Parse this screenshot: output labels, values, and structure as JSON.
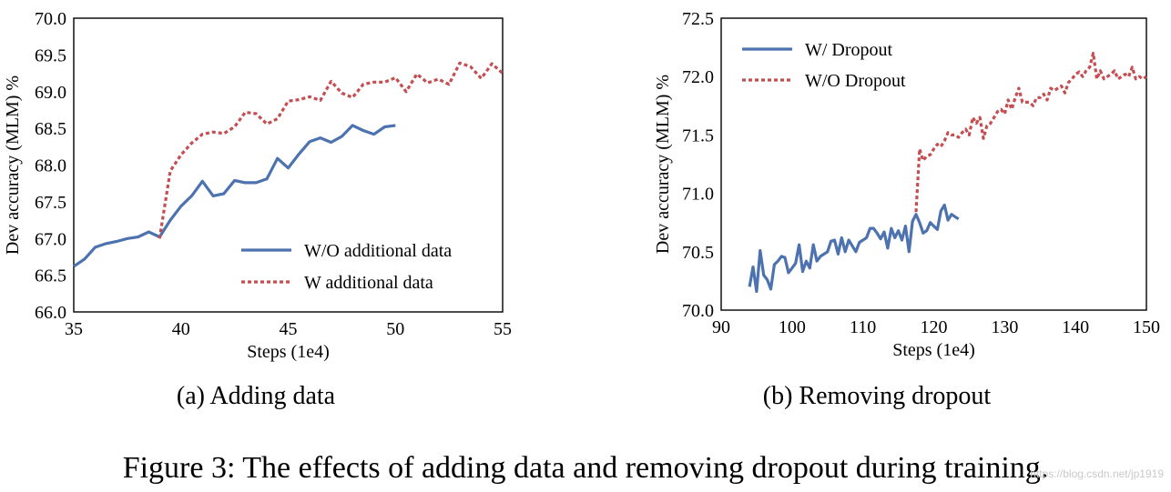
{
  "chart_data": [
    {
      "type": "line",
      "title": "",
      "xlabel": "Steps (1e4)",
      "ylabel": "Dev accuracy (MLM) %",
      "xlim": [
        35,
        55
      ],
      "ylim": [
        66.0,
        70.0
      ],
      "xticks": [
        "35",
        "40",
        "45",
        "50",
        "55"
      ],
      "yticks": [
        "66.0",
        "66.5",
        "67.0",
        "67.5",
        "68.0",
        "68.5",
        "69.0",
        "69.5",
        "70.0"
      ],
      "grid": false,
      "legend_position": "lower-right",
      "series": [
        {
          "name": "W/O additional data",
          "color": "#4c72b0",
          "style": "solid",
          "x": [
            35,
            35.5,
            36,
            36.5,
            37,
            37.5,
            38,
            38.5,
            39,
            39.5,
            40,
            40.5,
            41,
            41.5,
            42,
            42.5,
            43,
            43.5,
            44,
            44.5,
            45,
            45.5,
            46,
            46.5,
            47,
            47.5,
            48,
            48.5,
            49,
            49.5,
            50
          ],
          "y": [
            66.62,
            66.72,
            66.88,
            66.93,
            66.96,
            67.0,
            67.02,
            67.09,
            67.02,
            67.25,
            67.44,
            67.58,
            67.78,
            67.58,
            67.61,
            67.79,
            67.76,
            67.76,
            67.81,
            68.09,
            67.96,
            68.15,
            68.32,
            68.37,
            68.31,
            68.39,
            68.54,
            68.47,
            68.42,
            68.52,
            68.54
          ]
        },
        {
          "name": "W additional data",
          "color": "#c44e52",
          "style": "dotted",
          "x": [
            39,
            39.5,
            40,
            40.5,
            41,
            41.5,
            42,
            42.5,
            43,
            43.5,
            44,
            44.5,
            45,
            45.5,
            46,
            46.5,
            47,
            47.5,
            48,
            48.5,
            49,
            49.5,
            50,
            50.5,
            51,
            51.5,
            52,
            52.5,
            53,
            53.5,
            54,
            54.5,
            55
          ],
          "y": [
            67.0,
            67.92,
            68.14,
            68.3,
            68.42,
            68.45,
            68.43,
            68.52,
            68.72,
            68.7,
            68.56,
            68.63,
            68.87,
            68.89,
            68.93,
            68.88,
            69.14,
            68.98,
            68.92,
            69.1,
            69.13,
            69.13,
            69.19,
            69.0,
            69.24,
            69.12,
            69.17,
            69.1,
            69.39,
            69.34,
            69.18,
            69.38,
            69.25
          ]
        }
      ]
    },
    {
      "type": "line",
      "title": "",
      "xlabel": "Steps (1e4)",
      "ylabel": "Dev accuracy (MLM) %",
      "xlim": [
        90,
        150
      ],
      "ylim": [
        70.0,
        72.5
      ],
      "xticks": [
        "90",
        "100",
        "110",
        "120",
        "130",
        "140",
        "150"
      ],
      "yticks": [
        "70.0",
        "70.5",
        "71.0",
        "71.5",
        "72.0",
        "72.5"
      ],
      "grid": false,
      "legend_position": "upper-left",
      "series": [
        {
          "name": "W/ Dropout",
          "color": "#4c72b0",
          "style": "solid",
          "x": [
            94,
            94.5,
            95,
            95.5,
            96,
            96.5,
            97,
            97.5,
            98,
            98.5,
            99,
            99.5,
            100,
            100.5,
            101,
            101.5,
            102,
            102.5,
            103,
            103.5,
            104,
            104.5,
            105,
            105.5,
            106,
            106.5,
            107,
            107.5,
            108,
            108.5,
            109,
            109.5,
            110,
            110.5,
            111,
            111.5,
            112,
            112.5,
            113,
            113.5,
            114,
            114.5,
            115,
            115.5,
            116,
            116.5,
            117,
            117.5,
            118,
            118.5,
            119,
            119.5,
            120,
            120.5,
            121,
            121.5,
            122,
            122.5,
            123,
            123.5
          ],
          "y": [
            70.2,
            70.37,
            70.16,
            70.51,
            70.3,
            70.26,
            70.18,
            70.39,
            70.42,
            70.46,
            70.45,
            70.32,
            70.36,
            70.4,
            70.56,
            70.33,
            70.42,
            70.36,
            70.56,
            70.42,
            70.46,
            70.48,
            70.5,
            70.59,
            70.6,
            70.48,
            70.62,
            70.5,
            70.6,
            70.55,
            70.5,
            70.58,
            70.6,
            70.62,
            70.7,
            70.7,
            70.66,
            70.61,
            70.67,
            70.53,
            70.7,
            70.62,
            70.68,
            70.6,
            70.72,
            70.5,
            70.76,
            70.82,
            70.75,
            70.66,
            70.68,
            70.75,
            70.72,
            70.69,
            70.85,
            70.9,
            70.77,
            70.82,
            70.8,
            70.78
          ]
        },
        {
          "name": "W/O Dropout",
          "color": "#c44e52",
          "style": "dotted",
          "x": [
            117.5,
            118,
            118.5,
            119,
            119.5,
            120,
            120.5,
            121,
            121.5,
            122,
            122.5,
            123,
            123.5,
            124,
            124.5,
            125,
            125.5,
            126,
            126.5,
            127,
            127.5,
            128,
            128.5,
            129,
            129.5,
            130,
            130.5,
            131,
            131.5,
            132,
            132.5,
            133,
            133.5,
            134,
            134.5,
            135,
            135.5,
            136,
            136.5,
            137,
            137.5,
            138,
            138.5,
            139,
            139.5,
            140,
            140.5,
            141,
            141.5,
            142,
            142.5,
            143,
            143.5,
            144,
            144.5,
            145,
            145.5,
            146,
            146.5,
            147,
            147.5,
            148,
            148.5,
            149,
            149.5,
            150
          ],
          "y": [
            70.84,
            71.38,
            71.28,
            71.32,
            71.33,
            71.38,
            71.42,
            71.4,
            71.45,
            71.52,
            71.5,
            71.5,
            71.48,
            71.52,
            71.55,
            71.5,
            71.65,
            71.6,
            71.65,
            71.47,
            71.58,
            71.6,
            71.65,
            71.7,
            71.72,
            71.68,
            71.8,
            71.72,
            71.82,
            71.9,
            71.78,
            71.78,
            71.78,
            71.75,
            71.82,
            71.82,
            71.85,
            71.8,
            71.9,
            71.88,
            71.9,
            71.92,
            71.86,
            71.95,
            71.98,
            72.02,
            72.04,
            72.0,
            72.05,
            72.08,
            72.2,
            71.98,
            72.05,
            71.98,
            72.0,
            72.02,
            72.05,
            71.98,
            72.0,
            72.02,
            72.0,
            72.08,
            71.98,
            72.0,
            71.98,
            72.0
          ]
        }
      ]
    }
  ],
  "captions": {
    "a": "(a) Adding data",
    "b": "(b) Removing dropout",
    "figure": "Figure 3: The effects of adding data and removing dropout during training."
  },
  "watermark": "https://blog.csdn.net/jp1919"
}
